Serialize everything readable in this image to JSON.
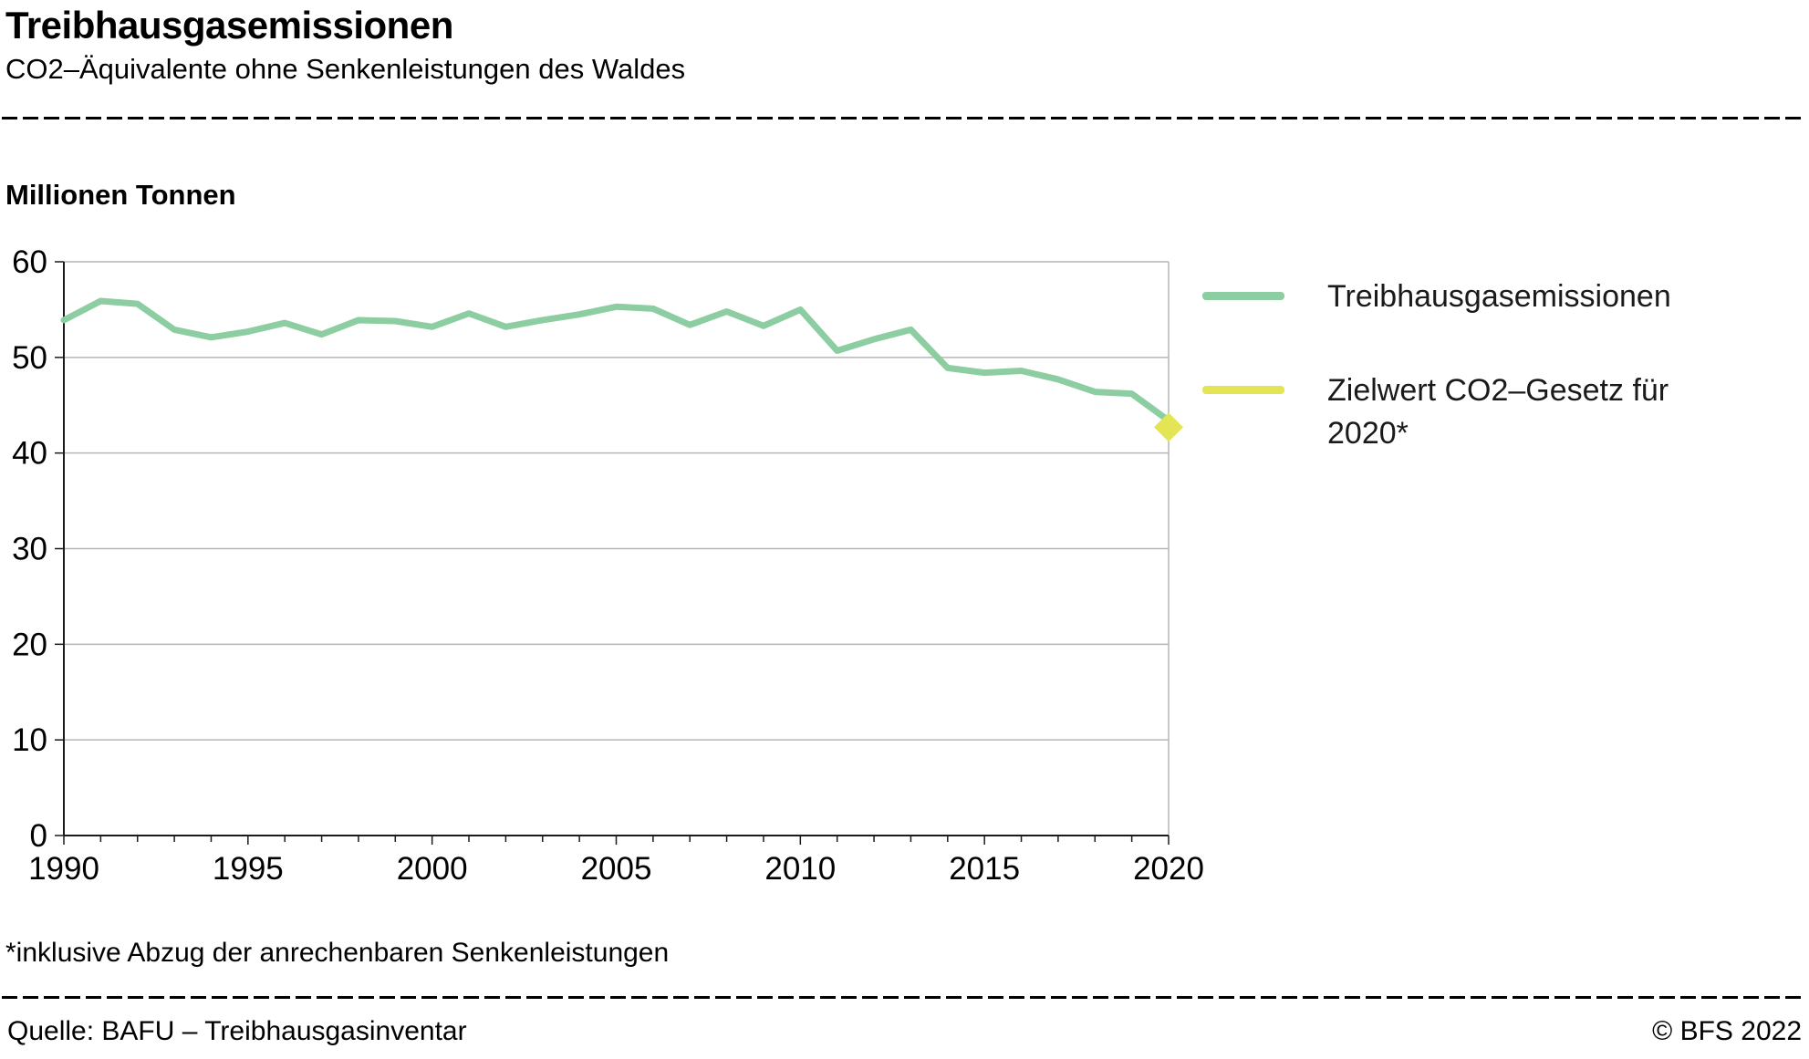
{
  "header": {
    "title": "Treibhausgasemissionen",
    "subtitle": "CO2–Äquivalente ohne Senkenleistungen des Waldes"
  },
  "axis": {
    "y_title": "Millionen Tonnen"
  },
  "legend": [
    {
      "label": "Treibhausgasemissionen",
      "color": "#8CCDA1"
    },
    {
      "label": "Zielwert CO2–Gesetz für 2020*",
      "color": "#E3E554"
    }
  ],
  "footnote": "*inklusive Abzug der anrechenbaren Senkenleistungen",
  "footer": {
    "source": "Quelle: BAFU – Treibhausgasinventar",
    "copyright": "© BFS 2022"
  },
  "colors": {
    "emissions_line": "#8CCDA1",
    "target_marker": "#E3E554",
    "gridline": "#b6b6b6",
    "axis": "#1a1a1a"
  },
  "chart_data": {
    "type": "line",
    "title": "Treibhausgasemissionen",
    "ylabel": "Millionen Tonnen",
    "xlabel": "",
    "xlim": [
      1990,
      2020
    ],
    "ylim": [
      0,
      60
    ],
    "xticks": [
      1990,
      1995,
      2000,
      2005,
      2010,
      2015,
      2020
    ],
    "yticks": [
      0,
      10,
      20,
      30,
      40,
      50,
      60
    ],
    "grid": true,
    "legend_position": "right",
    "x": [
      1990,
      1991,
      1992,
      1993,
      1994,
      1995,
      1996,
      1997,
      1998,
      1999,
      2000,
      2001,
      2002,
      2003,
      2004,
      2005,
      2006,
      2007,
      2008,
      2009,
      2010,
      2011,
      2012,
      2013,
      2014,
      2015,
      2016,
      2017,
      2018,
      2019,
      2020
    ],
    "series": [
      {
        "name": "Treibhausgasemissionen",
        "color": "#8CCDA1",
        "values": [
          53.9,
          55.9,
          55.6,
          52.9,
          52.1,
          52.7,
          53.6,
          52.4,
          53.9,
          53.8,
          53.2,
          54.6,
          53.2,
          53.9,
          54.5,
          55.3,
          55.1,
          53.4,
          54.8,
          53.3,
          55.0,
          50.7,
          51.9,
          52.9,
          48.9,
          48.4,
          48.6,
          47.7,
          46.4,
          46.2,
          43.4
        ]
      },
      {
        "name": "Zielwert CO2–Gesetz für 2020*",
        "color": "#E3E554",
        "marker": {
          "x": 2020,
          "y": 42.7
        }
      }
    ]
  }
}
